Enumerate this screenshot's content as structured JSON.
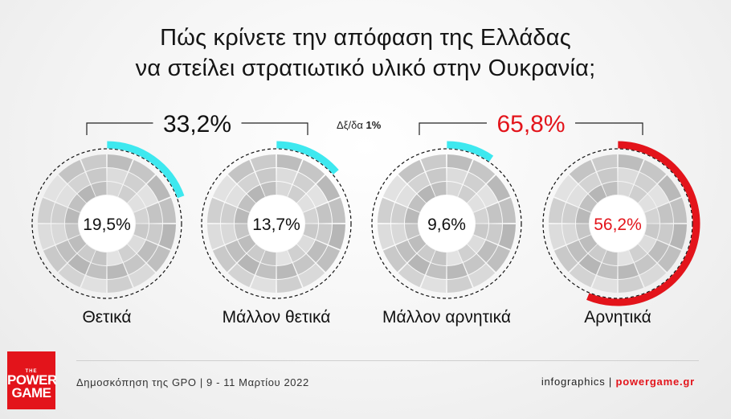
{
  "title": {
    "line1": "Πώς κρίνετε την απόφαση της Ελλάδας",
    "line2": "να στείλει στρατιωτικό υλικό στην Ουκρανία;"
  },
  "chart_data": {
    "type": "pie",
    "categories": [
      "Θετικά",
      "Μάλλον θετικά",
      "Μάλλον αρνητικά",
      "Αρνητικά"
    ],
    "values": [
      19.5,
      13.7,
      9.6,
      56.2
    ],
    "value_labels": [
      "19,5%",
      "13,7%",
      "9,6%",
      "56,2%"
    ],
    "groups": [
      {
        "label": "33,2%",
        "value": 33.2,
        "members": [
          0,
          1
        ]
      },
      {
        "label": "65,8%",
        "value": 65.8,
        "members": [
          2,
          3
        ]
      }
    ],
    "other": {
      "label": "Δξ/δα",
      "value_label": "1%",
      "value": 1
    },
    "colors": {
      "positive": "#3ee8ef",
      "negative": "#e3141b",
      "text_negative": "#e3141b"
    }
  },
  "footer": {
    "source": "Δημοσκόπηση της GPO | 9 - 11 Μαρτίου 2022",
    "infographics": "infographics | ",
    "brand": "powergame.gr"
  },
  "logo": {
    "the": "THE",
    "line1": "POWER",
    "line2": "GAME"
  }
}
